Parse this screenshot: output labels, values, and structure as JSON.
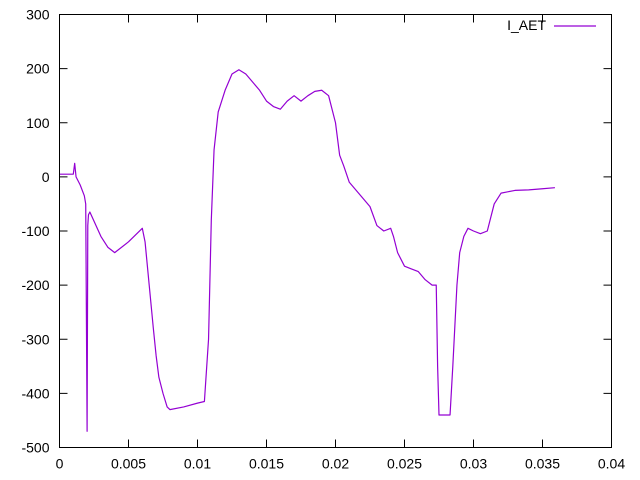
{
  "chart_data": {
    "type": "line",
    "title": "",
    "xlabel": "",
    "ylabel": "",
    "xlim": [
      0,
      0.04
    ],
    "ylim": [
      -500,
      300
    ],
    "grid": false,
    "legend_placement": "top-right",
    "xticks": [
      "0",
      "0.005",
      "0.01",
      "0.015",
      "0.02",
      "0.025",
      "0.03",
      "0.035",
      "0.04"
    ],
    "yticks": [
      "300",
      "200",
      "100",
      "0",
      "-100",
      "-200",
      "-300",
      "-400",
      "-500"
    ],
    "series": [
      {
        "name": "I_AET",
        "color": "#9400d3",
        "x": [
          0.0,
          0.0005,
          0.001,
          0.0011,
          0.0012,
          0.0015,
          0.0018,
          0.0019,
          0.002,
          0.00205,
          0.0021,
          0.0022,
          0.003,
          0.0035,
          0.004,
          0.005,
          0.006,
          0.0062,
          0.0065,
          0.0068,
          0.007,
          0.0072,
          0.0075,
          0.0078,
          0.008,
          0.009,
          0.01,
          0.0105,
          0.0108,
          0.011,
          0.0112,
          0.0115,
          0.012,
          0.0125,
          0.013,
          0.0135,
          0.014,
          0.0145,
          0.015,
          0.0155,
          0.016,
          0.0165,
          0.017,
          0.0175,
          0.018,
          0.0185,
          0.019,
          0.0195,
          0.02,
          0.0203,
          0.0206,
          0.021,
          0.0215,
          0.022,
          0.0225,
          0.023,
          0.0235,
          0.024,
          0.0242,
          0.0245,
          0.025,
          0.0255,
          0.026,
          0.0265,
          0.027,
          0.0273,
          0.0274,
          0.0275,
          0.028,
          0.0283,
          0.0285,
          0.0288,
          0.029,
          0.0293,
          0.0296,
          0.03,
          0.0305,
          0.031,
          0.0315,
          0.032,
          0.033,
          0.034,
          0.035,
          0.0359
        ],
        "y": [
          5,
          5,
          5,
          25,
          0,
          -15,
          -35,
          -50,
          -470,
          -90,
          -70,
          -65,
          -110,
          -130,
          -140,
          -120,
          -95,
          -120,
          -200,
          -280,
          -330,
          -370,
          -400,
          -425,
          -430,
          -425,
          -418,
          -415,
          -300,
          -80,
          50,
          120,
          160,
          190,
          198,
          190,
          175,
          160,
          140,
          130,
          125,
          140,
          150,
          140,
          150,
          158,
          160,
          150,
          100,
          40,
          20,
          -10,
          -25,
          -40,
          -55,
          -90,
          -100,
          -95,
          -110,
          -140,
          -165,
          -170,
          -175,
          -190,
          -200,
          -200,
          -350,
          -440,
          -440,
          -440,
          -350,
          -200,
          -140,
          -110,
          -95,
          -100,
          -105,
          -100,
          -50,
          -30,
          -25,
          -24,
          -22,
          -20
        ]
      }
    ]
  }
}
